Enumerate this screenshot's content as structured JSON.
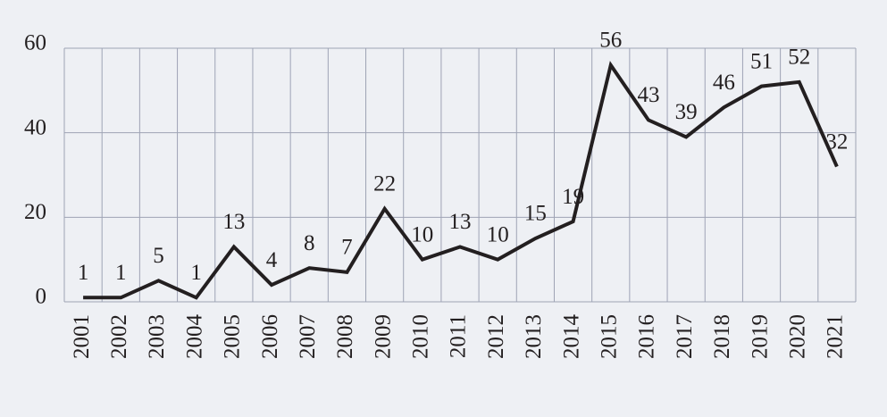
{
  "chart_data": {
    "type": "line",
    "categories": [
      "2001",
      "2002",
      "2003",
      "2004",
      "2005",
      "2006",
      "2007",
      "2008",
      "2009",
      "2010",
      "2011",
      "2012",
      "2013",
      "2014",
      "2015",
      "2016",
      "2017",
      "2018",
      "2019",
      "2020",
      "2021"
    ],
    "series": [
      {
        "color": "#231f20",
        "values": [
          1,
          1,
          5,
          1,
          13,
          4,
          8,
          7,
          22,
          10,
          13,
          10,
          15,
          19,
          56,
          43,
          39,
          46,
          51,
          52,
          32
        ]
      }
    ],
    "ylim": [
      0,
      60
    ],
    "yticks": [
      0,
      20,
      40,
      60
    ],
    "grid": true
  }
}
